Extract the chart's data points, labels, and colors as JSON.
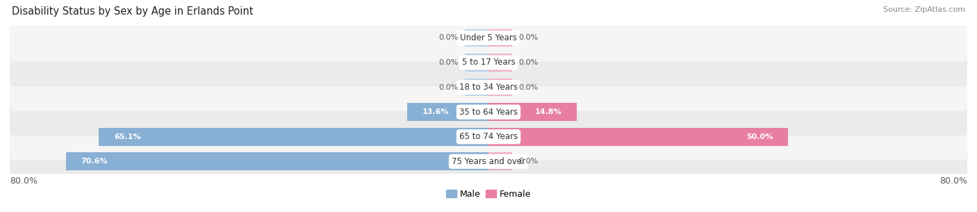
{
  "title": "Disability Status by Sex by Age in Erlands Point",
  "source": "Source: ZipAtlas.com",
  "categories": [
    "Under 5 Years",
    "5 to 17 Years",
    "18 to 34 Years",
    "35 to 64 Years",
    "65 to 74 Years",
    "75 Years and over"
  ],
  "male_values": [
    0.0,
    0.0,
    0.0,
    13.6,
    65.1,
    70.6
  ],
  "female_values": [
    0.0,
    0.0,
    0.0,
    14.8,
    50.0,
    0.0
  ],
  "male_color": "#88afd4",
  "female_color": "#e87fa0",
  "male_stub_color": "#b8d0e8",
  "female_stub_color": "#f0b0c0",
  "male_label": "Male",
  "female_label": "Female",
  "axis_max": 80.0,
  "row_bg_odd": "#ebebeb",
  "row_bg_even": "#f5f5f5",
  "title_fontsize": 10.5,
  "source_fontsize": 8,
  "legend_fontsize": 9,
  "category_fontsize": 8.5,
  "value_fontsize": 8,
  "stub_size": 4.0
}
